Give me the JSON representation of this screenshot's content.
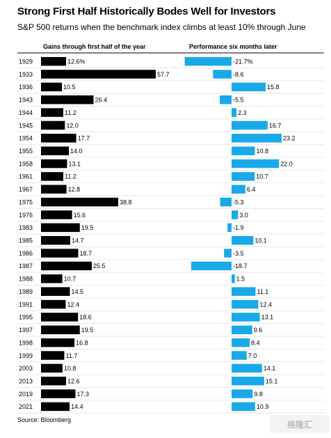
{
  "title": "Strong First Half Historically Bodes Well for Investors",
  "subtitle": "S&P 500 returns when the benchmark index climbs at least 10% through June",
  "source": "Source: Bloomberg",
  "watermark": "格隆汇",
  "chart_data": {
    "type": "bar",
    "orientation": "horizontal",
    "categories": [
      "1929",
      "1933",
      "1936",
      "1943",
      "1944",
      "1945",
      "1954",
      "1955",
      "1958",
      "1961",
      "1967",
      "1975",
      "1976",
      "1983",
      "1985",
      "1986",
      "1987",
      "1988",
      "1989",
      "1991",
      "1995",
      "1997",
      "1998",
      "1999",
      "2003",
      "2013",
      "2019",
      "2021"
    ],
    "series": [
      {
        "name": "Gains through first half of the year",
        "color": "#000000",
        "values": [
          12.6,
          57.7,
          10.5,
          26.4,
          11.2,
          12.0,
          17.7,
          14.0,
          13.1,
          11.2,
          12.8,
          38.8,
          15.6,
          19.5,
          14.7,
          18.7,
          25.5,
          10.7,
          14.5,
          12.4,
          18.6,
          19.5,
          16.8,
          11.7,
          10.8,
          12.6,
          17.3,
          14.4
        ],
        "labels": [
          "12.6%",
          "57.7",
          "10.5",
          "26.4",
          "11.2",
          "12.0",
          "17.7",
          "14.0",
          "13.1",
          "11.2",
          "12.8",
          "38.8",
          "15.6",
          "19.5",
          "14.7",
          "18.7",
          "25.5",
          "10.7",
          "14.5",
          "12.4",
          "18.6",
          "19.5",
          "16.8",
          "11.7",
          "10.8",
          "12.6",
          "17.3",
          "14.4"
        ]
      },
      {
        "name": "Performance six months later",
        "color": "#1aa9e8",
        "values": [
          -21.7,
          -8.6,
          15.8,
          -5.5,
          2.3,
          16.7,
          23.2,
          10.8,
          22.0,
          10.7,
          6.4,
          -5.3,
          3.0,
          -1.9,
          10.1,
          -3.5,
          -18.7,
          1.5,
          11.1,
          12.4,
          13.1,
          9.6,
          8.4,
          7.0,
          14.1,
          15.1,
          9.8,
          10.9
        ],
        "labels": [
          "-21.7%",
          "-8.6",
          "15.8",
          "-5.5",
          "2.3",
          "16.7",
          "23.2",
          "10.8",
          "22.0",
          "10.7",
          "6.4",
          "-5.3",
          "3.0",
          "-1.9",
          "10.1",
          "-3.5",
          "-18.7",
          "1.5",
          "11.1",
          "12.4",
          "13.1",
          "9.6",
          "8.4",
          "7.0",
          "14.1",
          "15.1",
          "9.8",
          "10.9"
        ]
      }
    ]
  }
}
